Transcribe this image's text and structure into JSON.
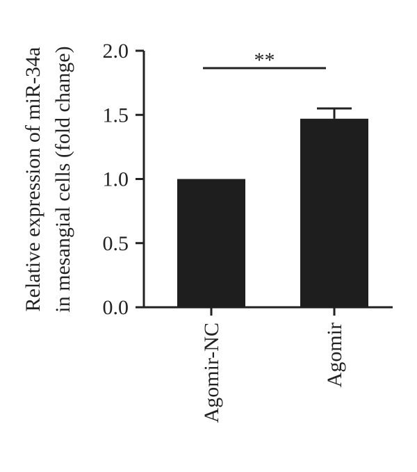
{
  "chart_data": {
    "type": "bar",
    "categories": [
      "Agomir-NC",
      "Agomir"
    ],
    "values": [
      1.0,
      1.47
    ],
    "error": [
      0.0,
      0.08
    ],
    "ylabel_lines": [
      "Relative expression of miR-34a",
      "in mesangial cells (fold change)"
    ],
    "xlabel": "",
    "title": "",
    "ylim": [
      0,
      2.0
    ],
    "yticks": [
      0.0,
      0.5,
      1.0,
      1.5,
      2.0
    ],
    "ytick_labels": [
      "0.0",
      "0.5",
      "1.0",
      "1.5",
      "2.0"
    ],
    "significance": {
      "label": "**",
      "between": [
        0,
        1
      ]
    },
    "bar_color": "#1e1e1e",
    "axis_color": "#222222",
    "grid": false,
    "legend": "none"
  }
}
